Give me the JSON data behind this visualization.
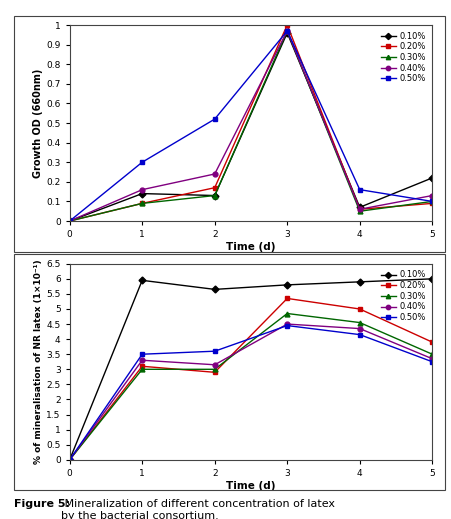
{
  "top_chart": {
    "xlabel": "Time (d)",
    "ylabel": "Growth OD (660nm)",
    "xlim": [
      0,
      5
    ],
    "ylim": [
      0,
      1.0
    ],
    "yticks": [
      0,
      0.1,
      0.2,
      0.3,
      0.4,
      0.5,
      0.6,
      0.7,
      0.8,
      0.9,
      1
    ],
    "ytick_labels": [
      "0",
      "0.1",
      "0.2",
      "0.3",
      "0.4",
      "0.5",
      "0.6",
      "0.7",
      "0.8",
      "0.9",
      "1"
    ],
    "xticks": [
      0,
      1,
      2,
      3,
      4,
      5
    ],
    "series": [
      {
        "label": "0.10%",
        "color": "#000000",
        "marker": "D",
        "x": [
          0,
          1,
          2,
          3,
          4,
          5
        ],
        "y": [
          0,
          0.14,
          0.13,
          0.96,
          0.07,
          0.22
        ]
      },
      {
        "label": "0.20%",
        "color": "#cc0000",
        "marker": "s",
        "x": [
          0,
          1,
          2,
          3,
          4,
          5
        ],
        "y": [
          0,
          0.09,
          0.17,
          1.0,
          0.06,
          0.09
        ]
      },
      {
        "label": "0.30%",
        "color": "#006600",
        "marker": "^",
        "x": [
          0,
          1,
          2,
          3,
          4,
          5
        ],
        "y": [
          0,
          0.09,
          0.13,
          0.97,
          0.05,
          0.1
        ]
      },
      {
        "label": "0.40%",
        "color": "#800080",
        "marker": "o",
        "x": [
          0,
          1,
          2,
          3,
          4,
          5
        ],
        "y": [
          0,
          0.16,
          0.24,
          0.97,
          0.06,
          0.13
        ]
      },
      {
        "label": "0.50%",
        "color": "#0000cc",
        "marker": "s",
        "x": [
          0,
          1,
          2,
          3,
          4,
          5
        ],
        "y": [
          0,
          0.3,
          0.52,
          0.97,
          0.16,
          0.1
        ]
      }
    ]
  },
  "bottom_chart": {
    "xlabel": "Time (d)",
    "ylabel": "% of mineralisation of NR latex (1×10⁻¹)",
    "xlim": [
      0,
      5
    ],
    "ylim": [
      0,
      6.5
    ],
    "yticks": [
      0,
      0.5,
      1,
      1.5,
      2,
      2.5,
      3,
      3.5,
      4,
      4.5,
      5,
      5.5,
      6,
      6.5
    ],
    "ytick_labels": [
      "0",
      "0.5",
      "1",
      "1.5",
      "2",
      "2.5",
      "3",
      "3.5",
      "4",
      "4.5",
      "5",
      "5.5",
      "6",
      "6.5"
    ],
    "xticks": [
      0,
      1,
      2,
      3,
      4,
      5
    ],
    "series": [
      {
        "label": "0.10%",
        "color": "#000000",
        "marker": "D",
        "x": [
          0,
          1,
          2,
          3,
          4,
          5
        ],
        "y": [
          0,
          5.95,
          5.65,
          5.8,
          5.9,
          6.0
        ]
      },
      {
        "label": "0.20%",
        "color": "#cc0000",
        "marker": "s",
        "x": [
          0,
          1,
          2,
          3,
          4,
          5
        ],
        "y": [
          0,
          3.1,
          2.9,
          5.35,
          5.0,
          3.9
        ]
      },
      {
        "label": "0.30%",
        "color": "#006600",
        "marker": "^",
        "x": [
          0,
          1,
          2,
          3,
          4,
          5
        ],
        "y": [
          0,
          3.0,
          3.0,
          4.85,
          4.55,
          3.5
        ]
      },
      {
        "label": "0.40%",
        "color": "#800080",
        "marker": "o",
        "x": [
          0,
          1,
          2,
          3,
          4,
          5
        ],
        "y": [
          0,
          3.3,
          3.15,
          4.5,
          4.35,
          3.35
        ]
      },
      {
        "label": "0.50%",
        "color": "#0000cc",
        "marker": "s",
        "x": [
          0,
          1,
          2,
          3,
          4,
          5
        ],
        "y": [
          0,
          3.5,
          3.6,
          4.45,
          4.15,
          3.25
        ]
      }
    ]
  },
  "caption_bold": "Figure 5:",
  "caption_text": " Mineralization of different concentration of latex\nby the bacterial consortium.",
  "bg_color": "#ffffff"
}
